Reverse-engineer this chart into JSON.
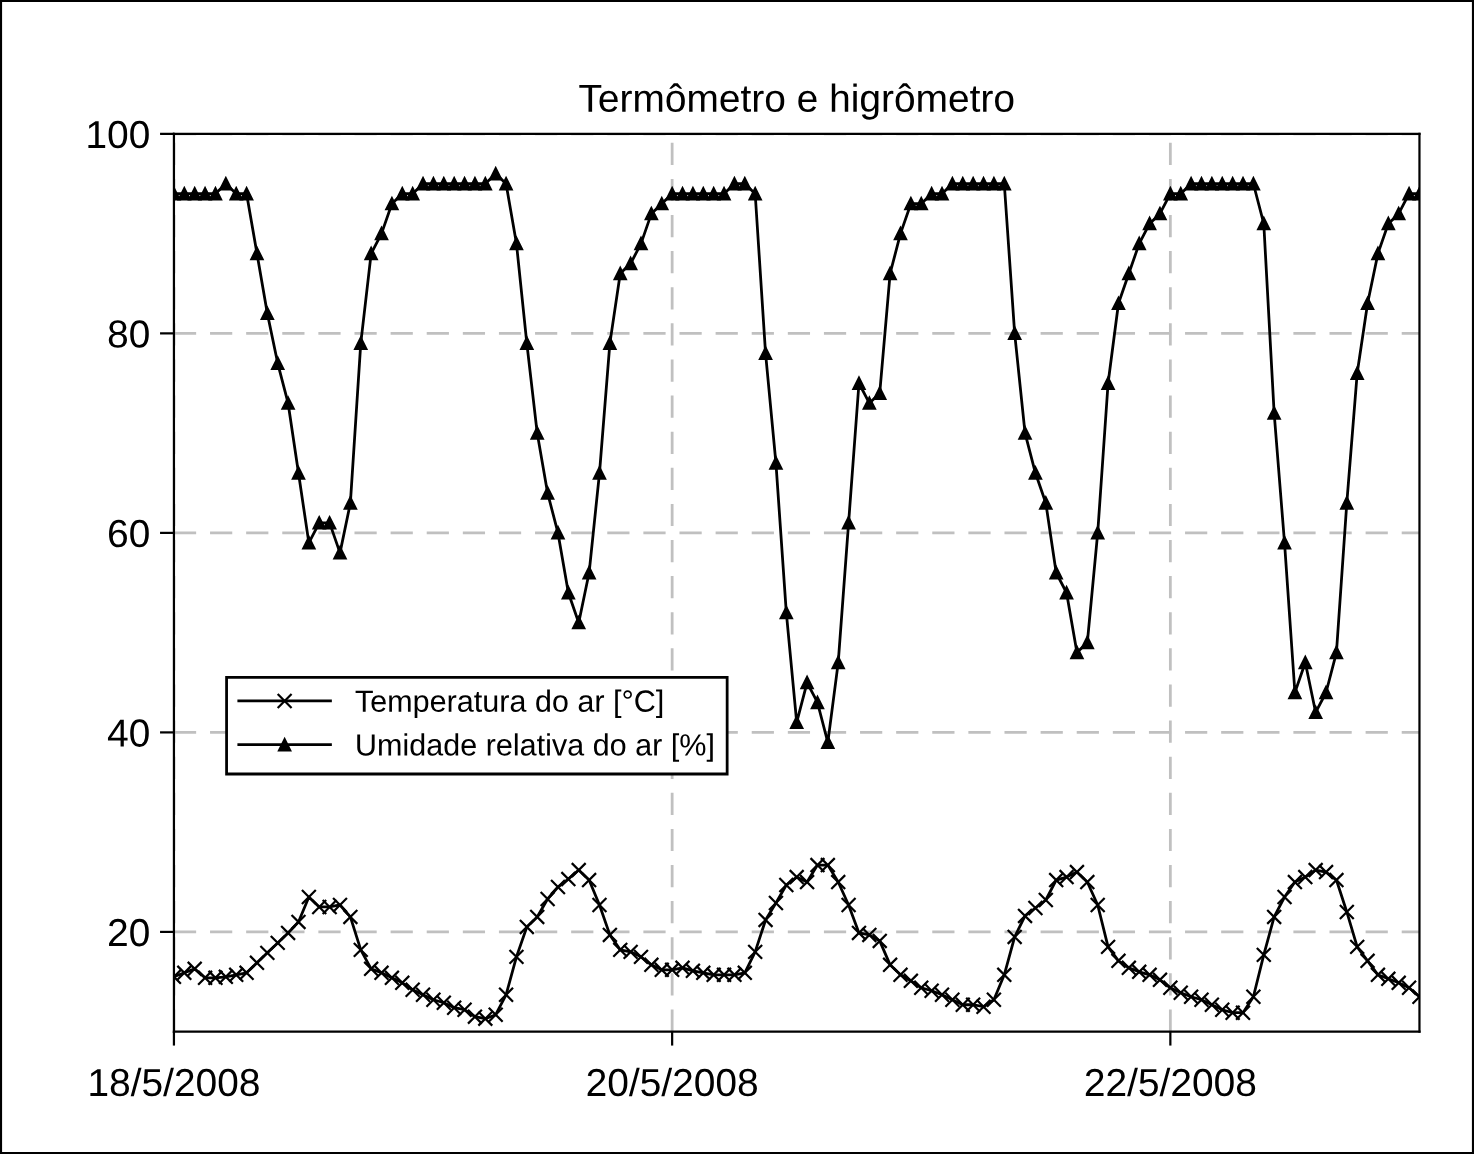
{
  "chart_data": {
    "type": "line",
    "title": "Termômetro e higrômetro",
    "x": [
      "2008-05-18T00:00",
      "2008-05-18T01:00",
      "2008-05-18T02:00",
      "2008-05-18T03:00",
      "2008-05-18T04:00",
      "2008-05-18T05:00",
      "2008-05-18T06:00",
      "2008-05-18T07:00",
      "2008-05-18T08:00",
      "2008-05-18T09:00",
      "2008-05-18T10:00",
      "2008-05-18T11:00",
      "2008-05-18T12:00",
      "2008-05-18T13:00",
      "2008-05-18T14:00",
      "2008-05-18T15:00",
      "2008-05-18T16:00",
      "2008-05-18T17:00",
      "2008-05-18T18:00",
      "2008-05-18T19:00",
      "2008-05-18T20:00",
      "2008-05-18T21:00",
      "2008-05-18T22:00",
      "2008-05-18T23:00",
      "2008-05-19T00:00",
      "2008-05-19T01:00",
      "2008-05-19T02:00",
      "2008-05-19T03:00",
      "2008-05-19T04:00",
      "2008-05-19T05:00",
      "2008-05-19T06:00",
      "2008-05-19T07:00",
      "2008-05-19T08:00",
      "2008-05-19T09:00",
      "2008-05-19T10:00",
      "2008-05-19T11:00",
      "2008-05-19T12:00",
      "2008-05-19T13:00",
      "2008-05-19T14:00",
      "2008-05-19T15:00",
      "2008-05-19T16:00",
      "2008-05-19T17:00",
      "2008-05-19T18:00",
      "2008-05-19T19:00",
      "2008-05-19T20:00",
      "2008-05-19T21:00",
      "2008-05-19T22:00",
      "2008-05-19T23:00",
      "2008-05-20T00:00",
      "2008-05-20T01:00",
      "2008-05-20T02:00",
      "2008-05-20T03:00",
      "2008-05-20T04:00",
      "2008-05-20T05:00",
      "2008-05-20T06:00",
      "2008-05-20T07:00",
      "2008-05-20T08:00",
      "2008-05-20T09:00",
      "2008-05-20T10:00",
      "2008-05-20T11:00",
      "2008-05-20T12:00",
      "2008-05-20T13:00",
      "2008-05-20T14:00",
      "2008-05-20T15:00",
      "2008-05-20T16:00",
      "2008-05-20T17:00",
      "2008-05-20T18:00",
      "2008-05-20T19:00",
      "2008-05-20T20:00",
      "2008-05-20T21:00",
      "2008-05-20T22:00",
      "2008-05-20T23:00",
      "2008-05-21T00:00",
      "2008-05-21T01:00",
      "2008-05-21T02:00",
      "2008-05-21T03:00",
      "2008-05-21T04:00",
      "2008-05-21T05:00",
      "2008-05-21T06:00",
      "2008-05-21T07:00",
      "2008-05-21T08:00",
      "2008-05-21T09:00",
      "2008-05-21T10:00",
      "2008-05-21T11:00",
      "2008-05-21T12:00",
      "2008-05-21T13:00",
      "2008-05-21T14:00",
      "2008-05-21T15:00",
      "2008-05-21T16:00",
      "2008-05-21T17:00",
      "2008-05-21T18:00",
      "2008-05-21T19:00",
      "2008-05-21T20:00",
      "2008-05-21T21:00",
      "2008-05-21T22:00",
      "2008-05-21T23:00",
      "2008-05-22T00:00",
      "2008-05-22T01:00",
      "2008-05-22T02:00",
      "2008-05-22T03:00",
      "2008-05-22T04:00",
      "2008-05-22T05:00",
      "2008-05-22T06:00",
      "2008-05-22T07:00",
      "2008-05-22T08:00",
      "2008-05-22T09:00",
      "2008-05-22T10:00",
      "2008-05-22T11:00",
      "2008-05-22T12:00",
      "2008-05-22T13:00",
      "2008-05-22T14:00",
      "2008-05-22T15:00",
      "2008-05-22T16:00",
      "2008-05-22T17:00",
      "2008-05-22T18:00",
      "2008-05-22T19:00",
      "2008-05-22T20:00",
      "2008-05-22T21:00",
      "2008-05-22T22:00",
      "2008-05-22T23:00",
      "2008-05-23T00:00"
    ],
    "series": [
      {
        "name": "Temperatura do ar [°C]",
        "color": "#000000",
        "marker": "cross",
        "values": [
          15.5,
          15.9,
          16.3,
          15.4,
          15.4,
          15.5,
          15.7,
          15.9,
          16.9,
          17.9,
          18.9,
          19.9,
          21,
          23.5,
          22.5,
          22.5,
          22.7,
          21.5,
          18.2,
          16.3,
          15.9,
          15.4,
          14.9,
          14.2,
          13.7,
          13.2,
          12.9,
          12.4,
          12.2,
          11.5,
          11.3,
          11.7,
          13.7,
          17.5,
          20.5,
          21.5,
          23.3,
          24.5,
          25.3,
          26.2,
          25.2,
          22.7,
          19.7,
          18.2,
          18,
          17.5,
          16.7,
          16.2,
          16.2,
          16.4,
          16.1,
          15.9,
          15.7,
          15.7,
          15.7,
          15.9,
          18,
          21.2,
          22.9,
          24.7,
          25.5,
          25,
          26.7,
          26.7,
          25,
          22.7,
          19.9,
          19.7,
          19.1,
          16.7,
          15.7,
          15.1,
          14.4,
          14.1,
          13.7,
          13.2,
          12.7,
          12.7,
          12.5,
          13.2,
          15.7,
          19.5,
          21.6,
          22.4,
          23.2,
          25.2,
          25.5,
          26,
          25,
          22.7,
          18.5,
          17.1,
          16.4,
          16,
          15.7,
          15.2,
          14.4,
          13.9,
          13.5,
          13.2,
          12.7,
          12.2,
          11.9,
          11.9,
          13.5,
          17.7,
          21.5,
          23.5,
          25,
          25.5,
          26.2,
          26,
          25.2,
          22,
          18.5,
          17.1,
          15.7,
          15.3,
          14.9,
          14.4,
          13.5
        ]
      },
      {
        "name": "Umidade relativa do ar [%]",
        "color": "#000000",
        "marker": "triangle",
        "values": [
          94,
          94,
          94,
          94,
          94,
          95,
          94,
          94,
          88,
          82,
          77,
          73,
          66,
          59,
          61,
          61,
          58,
          63,
          79,
          88,
          90,
          93,
          94,
          94,
          95,
          95,
          95,
          95,
          95,
          95,
          95,
          96,
          95,
          89,
          79,
          70,
          64,
          60,
          54,
          51,
          56,
          66,
          79,
          86,
          87,
          89,
          92,
          93,
          94,
          94,
          94,
          94,
          94,
          94,
          95,
          95,
          94,
          78,
          67,
          52,
          41,
          45,
          43,
          39,
          47,
          61,
          75,
          73,
          74,
          86,
          90,
          93,
          93,
          94,
          94,
          95,
          95,
          95,
          95,
          95,
          95,
          80,
          70,
          66,
          63,
          56,
          54,
          48,
          49,
          60,
          75,
          83,
          86,
          89,
          91,
          92,
          94,
          94,
          95,
          95,
          95,
          95,
          95,
          95,
          95,
          91,
          72,
          59,
          44,
          47,
          42,
          44,
          48,
          63,
          76,
          83,
          88,
          91,
          92,
          94,
          94
        ]
      }
    ],
    "xlim": [
      "2008-05-18",
      "2008-05-23"
    ],
    "xticks": [
      {
        "value": "2008-05-18",
        "label": "18/5/2008"
      },
      {
        "value": "2008-05-20",
        "label": "20/5/2008"
      },
      {
        "value": "2008-05-22",
        "label": "22/5/2008"
      }
    ],
    "ylim": [
      10,
      100
    ],
    "yticks": [
      20,
      40,
      60,
      80,
      100
    ],
    "grid": true,
    "legend": "bottom left",
    "line_style": "solid"
  }
}
